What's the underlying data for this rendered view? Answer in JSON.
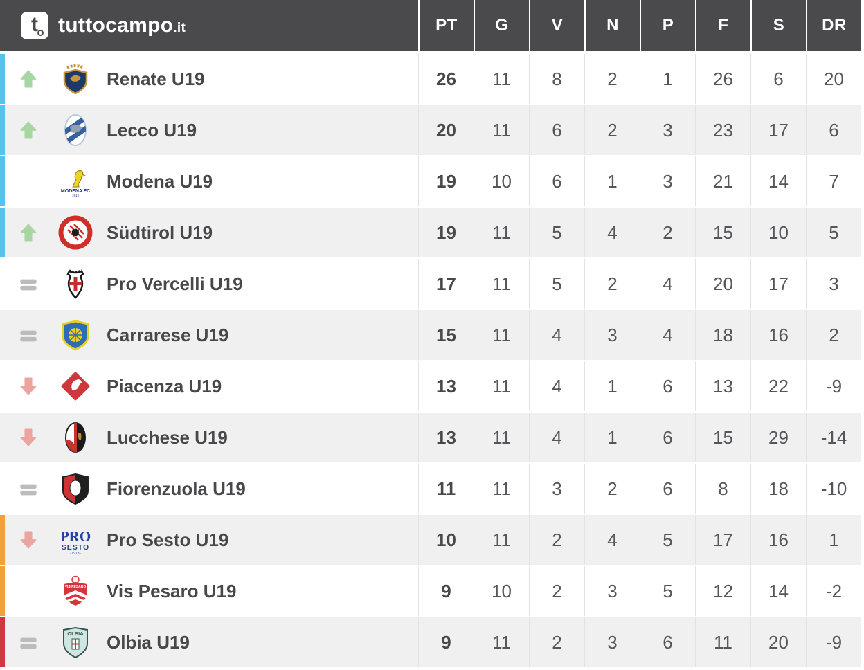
{
  "brand": {
    "name": "tuttocampo",
    "tld": ".it",
    "icon": "tuttocampo-logo"
  },
  "columns": [
    "PT",
    "G",
    "V",
    "N",
    "P",
    "F",
    "S",
    "DR"
  ],
  "colors": {
    "header_bg": "#4a4a4d",
    "row_bg": "#ffffff",
    "row_alt_bg": "#f0f0f1",
    "zones": {
      "promotion": "#55c3ea",
      "playout": "#f0a236",
      "relegation": "#cb3a40",
      "none": "transparent"
    },
    "movement": {
      "up": "#a8d6a3",
      "down": "#eca59e",
      "equal": "#bcbcbe"
    }
  },
  "standings": [
    {
      "team": "Renate U19",
      "movement": "up",
      "zone": "promotion",
      "logo": {
        "kind": "shield-crest",
        "fill": "#1c3a69",
        "accent": "#c7953e"
      },
      "stats": [
        "26",
        "11",
        "8",
        "2",
        "1",
        "26",
        "6",
        "20"
      ]
    },
    {
      "team": "Lecco U19",
      "movement": "up",
      "zone": "promotion",
      "logo": {
        "kind": "oval-stripes",
        "fill": "#ffffff",
        "stroke": "#b9c7d6",
        "stripe": "#35619f"
      },
      "stats": [
        "20",
        "11",
        "6",
        "2",
        "3",
        "23",
        "17",
        "6"
      ]
    },
    {
      "team": "Modena U19",
      "movement": "none",
      "zone": "promotion",
      "logo": {
        "kind": "bird",
        "body": "#f0d524",
        "accent": "#232f7a"
      },
      "stats": [
        "19",
        "10",
        "6",
        "1",
        "3",
        "21",
        "14",
        "7"
      ]
    },
    {
      "team": "Südtirol U19",
      "movement": "up",
      "zone": "promotion",
      "logo": {
        "kind": "ring-hatch",
        "ring": "#d02f27",
        "fill": "#ffffff",
        "ball": "#1c1c1c"
      },
      "stats": [
        "19",
        "11",
        "5",
        "4",
        "2",
        "15",
        "10",
        "5"
      ]
    },
    {
      "team": "Pro Vercelli U19",
      "movement": "equal",
      "zone": "none",
      "logo": {
        "kind": "ornate-shield",
        "fill": "#ffffff",
        "stroke": "#1a1a1a",
        "cross": "#cc2b2b"
      },
      "stats": [
        "17",
        "11",
        "5",
        "2",
        "4",
        "20",
        "17",
        "3"
      ]
    },
    {
      "team": "Carrarese U19",
      "movement": "equal",
      "zone": "none",
      "logo": {
        "kind": "shield-wheel",
        "fill": "#2e6cb4",
        "stroke": "#e8cf25",
        "wheel": "#e8cf25"
      },
      "stats": [
        "15",
        "11",
        "4",
        "3",
        "4",
        "18",
        "16",
        "2"
      ]
    },
    {
      "team": "Piacenza U19",
      "movement": "down",
      "zone": "none",
      "logo": {
        "kind": "diamond",
        "fill": "#ce383c",
        "blob": "#ffffff"
      },
      "stats": [
        "13",
        "11",
        "4",
        "1",
        "6",
        "13",
        "22",
        "-9"
      ]
    },
    {
      "team": "Lucchese U19",
      "movement": "down",
      "zone": "none",
      "logo": {
        "kind": "oval-halves",
        "left": "#ffffff",
        "right": "#1a1a1a",
        "mid": "#c6342f",
        "accent": "#b58a3a"
      },
      "stats": [
        "13",
        "11",
        "4",
        "1",
        "6",
        "15",
        "29",
        "-14"
      ]
    },
    {
      "team": "Fiorenzuola U19",
      "movement": "equal",
      "zone": "none",
      "logo": {
        "kind": "shield-diag",
        "a": "#ce3436",
        "b": "#1f1f1f",
        "center": "#ffffff"
      },
      "stats": [
        "11",
        "11",
        "3",
        "2",
        "6",
        "8",
        "18",
        "-10"
      ]
    },
    {
      "team": "Pro Sesto U19",
      "movement": "down",
      "zone": "playout",
      "logo": {
        "kind": "wordmark",
        "color": "#24439c",
        "top": "PRO",
        "bottom": "SESTO",
        "year": "1913"
      },
      "stats": [
        "10",
        "11",
        "2",
        "4",
        "5",
        "17",
        "16",
        "1"
      ]
    },
    {
      "team": "Vis Pesaro U19",
      "movement": "none",
      "zone": "playout",
      "logo": {
        "kind": "shield-chevron",
        "fill": "#d8353a",
        "chevron": "#ffffff",
        "label": "VIS PESARO"
      },
      "stats": [
        "9",
        "10",
        "2",
        "3",
        "5",
        "12",
        "14",
        "-2"
      ]
    },
    {
      "team": "Olbia U19",
      "movement": "equal",
      "zone": "relegation",
      "logo": {
        "kind": "shield-label",
        "fill": "#cfe7e3",
        "stroke": "#3a544d",
        "label": "OLBIA",
        "cross": "#c23a34"
      },
      "stats": [
        "9",
        "11",
        "2",
        "3",
        "6",
        "11",
        "20",
        "-9"
      ]
    }
  ]
}
